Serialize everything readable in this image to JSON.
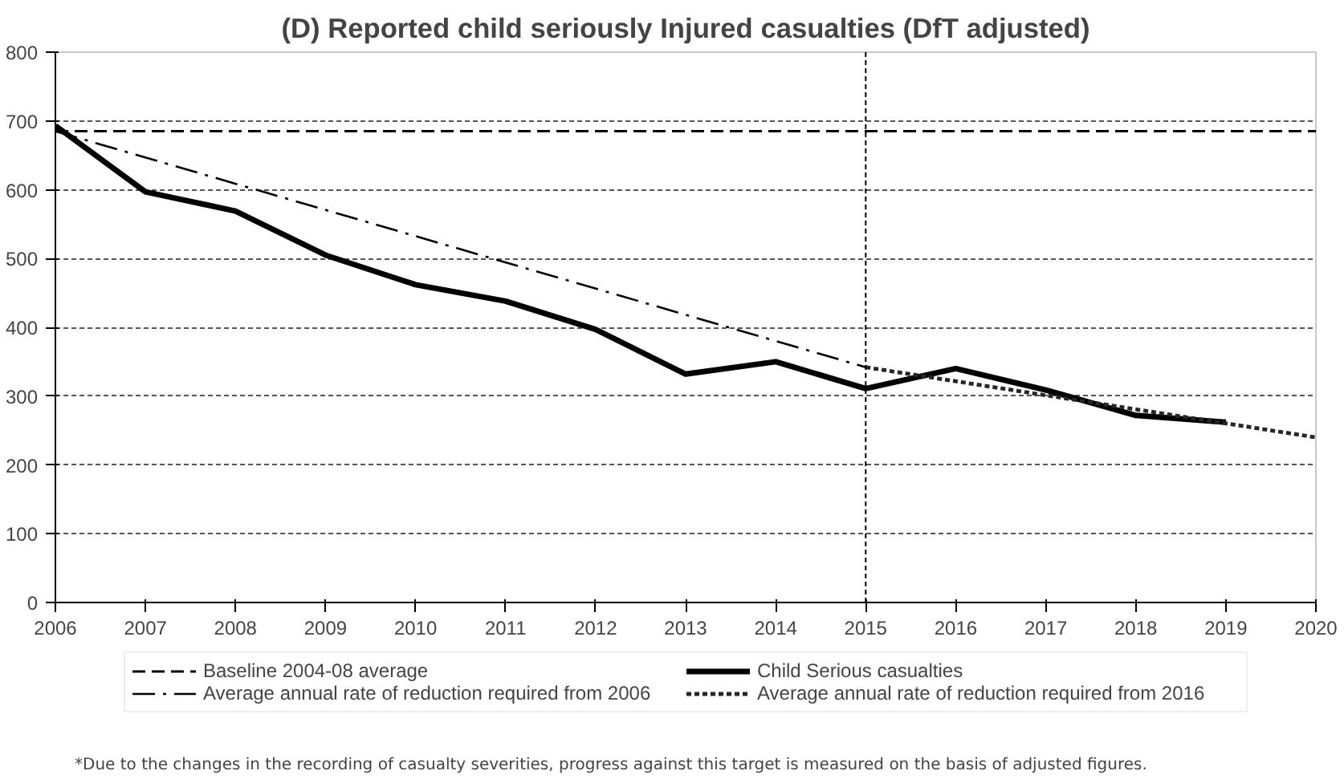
{
  "chart_data": {
    "type": "line",
    "title": "(D) Reported child seriously Injured casualties (DfT adjusted)",
    "x": [
      2006,
      2007,
      2008,
      2009,
      2010,
      2011,
      2012,
      2013,
      2014,
      2015,
      2016,
      2017,
      2018,
      2019
    ],
    "series": [
      {
        "name": "Baseline 2004-08 average",
        "color": "#000000",
        "line_style": "dashed",
        "x": [
          2006,
          2020
        ],
        "values": [
          685,
          685
        ]
      },
      {
        "name": "Average annual rate of reduction required from 2006",
        "color": "#000000",
        "line_style": "dashdot",
        "x": [
          2006,
          2015
        ],
        "values": [
          685,
          342
        ]
      },
      {
        "name": "Child Serious casualties",
        "color": "#000000",
        "line_style": "solid",
        "values": [
          693,
          597,
          569,
          505,
          462,
          438,
          397,
          332,
          350,
          311,
          340,
          309,
          272,
          262
        ]
      },
      {
        "name": "Average annual rate of reduction required from 2016",
        "color": "#262626",
        "line_style": "dotted",
        "x": [
          2015,
          2020
        ],
        "values": [
          342,
          240
        ]
      }
    ],
    "xlim": [
      2006,
      2020
    ],
    "xticks": [
      2006,
      2007,
      2008,
      2009,
      2010,
      2011,
      2012,
      2013,
      2014,
      2015,
      2016,
      2017,
      2018,
      2019,
      2020
    ],
    "ylim": [
      0,
      800
    ],
    "yticks": [
      0,
      100,
      200,
      300,
      400,
      500,
      600,
      700,
      800
    ],
    "ref_lines": [
      {
        "axis": "x",
        "value": 2015,
        "line_style": "dotted"
      }
    ],
    "grid": "y",
    "legend": "bottom",
    "marker": "none",
    "annotations": [
      "*Due to the changes in the recording of casualty severities, progress against this target is measured on the basis of adjusted figures."
    ]
  }
}
